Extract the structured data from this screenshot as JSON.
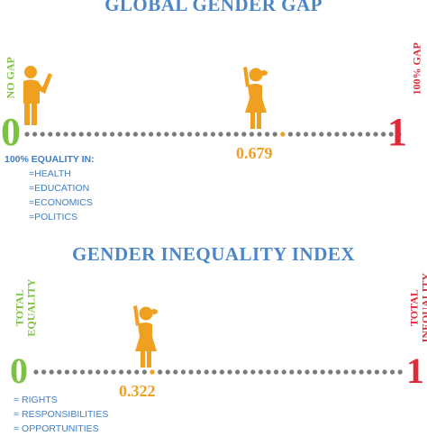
{
  "colors": {
    "blue": "#4a86c8",
    "green": "#7cc242",
    "red": "#e02a3a",
    "orange": "#f0a020",
    "dot": "#7a7a7a"
  },
  "gap": {
    "title": "GLOBAL GENDER GAP",
    "left_label": "NO GAP",
    "left_number": "0",
    "right_label": "100% GAP",
    "right_number": "1",
    "value": "0.679",
    "equality_heading": "100% EQUALITY IN:",
    "equality_items": [
      "=HEALTH",
      "=EDUCATION",
      "=ECONOMICS",
      "=POLITICS"
    ],
    "icons": [
      "man-icon",
      "girl-icon"
    ]
  },
  "gii": {
    "title": "GENDER INEQUALITY INDEX",
    "left_label_line1": "TOTAL",
    "left_label_line2": "EQUALITY",
    "left_number": "0",
    "right_label_line1": "TOTAL",
    "right_label_line2": "INEQUALITY",
    "right_number": "1",
    "value": "0.322",
    "items": [
      "= RIGHTS",
      "= RESPONSIBILITIES",
      "= OPPORTUNITIES"
    ],
    "icons": [
      "girl-icon"
    ]
  }
}
